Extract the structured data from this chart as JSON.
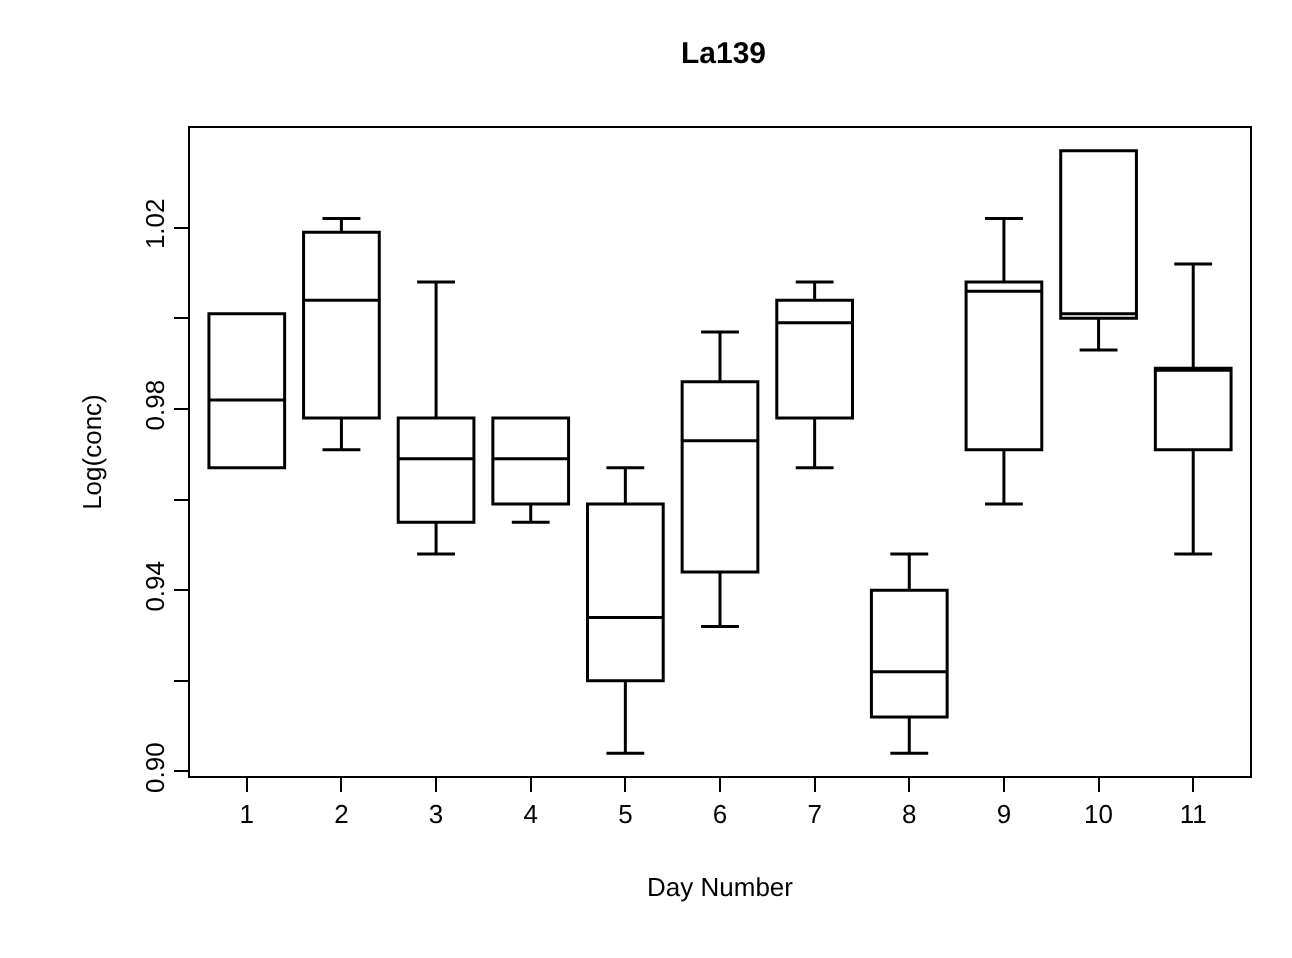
{
  "chart_data": {
    "type": "box",
    "title": "La139",
    "xlabel": "Day Number",
    "ylabel": "Log(conc)",
    "categories": [
      "1",
      "2",
      "3",
      "4",
      "5",
      "6",
      "7",
      "8",
      "9",
      "10",
      "11"
    ],
    "boxes": [
      {
        "low": 0.967,
        "q1": 0.967,
        "median": 0.982,
        "q3": 1.001,
        "high": 1.001
      },
      {
        "low": 0.971,
        "q1": 0.978,
        "median": 1.004,
        "q3": 1.019,
        "high": 1.022
      },
      {
        "low": 0.948,
        "q1": 0.955,
        "median": 0.969,
        "q3": 0.978,
        "high": 1.008
      },
      {
        "low": 0.955,
        "q1": 0.959,
        "median": 0.969,
        "q3": 0.978,
        "high": 0.978
      },
      {
        "low": 0.904,
        "q1": 0.92,
        "median": 0.934,
        "q3": 0.959,
        "high": 0.967
      },
      {
        "low": 0.932,
        "q1": 0.944,
        "median": 0.973,
        "q3": 0.986,
        "high": 0.997
      },
      {
        "low": 0.967,
        "q1": 0.978,
        "median": 0.999,
        "q3": 1.004,
        "high": 1.008
      },
      {
        "low": 0.904,
        "q1": 0.912,
        "median": 0.922,
        "q3": 0.94,
        "high": 0.948
      },
      {
        "low": 0.959,
        "q1": 0.971,
        "median": 1.006,
        "q3": 1.008,
        "high": 1.022
      },
      {
        "low": 0.993,
        "q1": 1.0,
        "median": 1.001,
        "q3": 1.037,
        "high": 1.037
      },
      {
        "low": 0.948,
        "q1": 0.971,
        "median": 0.989,
        "q3": 0.989,
        "high": 1.012
      }
    ],
    "color": "#000000",
    "ylim": [
      0.899,
      1.042
    ],
    "yticks": [
      {
        "value": 0.9,
        "label": "0.90"
      },
      {
        "value": 0.92,
        "label": null
      },
      0.94,
      {
        "value": 0.96,
        "label": null
      },
      0.98,
      {
        "value": 1.0,
        "label": null
      },
      1.02
    ],
    "grid": false
  }
}
